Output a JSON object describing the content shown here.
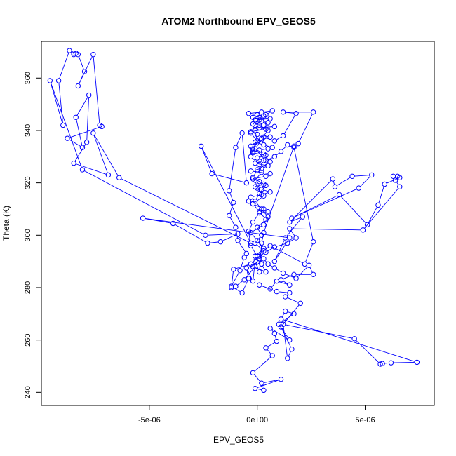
{
  "chart_data": {
    "type": "scatter",
    "title": "ATOM2 Northbound EPV_GEOS5",
    "xlabel": "EPV_GEOS5",
    "ylabel": "Theta (K)",
    "xlim": [
      -1e-05,
      8.2e-06
    ],
    "ylim": [
      235,
      374
    ],
    "x_ticks": [
      -5e-06,
      0,
      5e-06
    ],
    "x_tick_labels": [
      "-5e-06",
      "0e+00",
      "5e-06"
    ],
    "y_ticks": [
      240,
      260,
      280,
      300,
      320,
      340,
      360
    ],
    "y_tick_labels": [
      "240",
      "260",
      "280",
      "300",
      "320",
      "340",
      "360"
    ],
    "grid": false,
    "legend": "none",
    "color": "#0000ff",
    "series": [
      {
        "points_style": "points-connected",
        "x": [
          3e-07,
          -1e-07,
          1.1e-06,
          2e-07,
          -2e-07,
          7e-07,
          4e-07,
          9e-07,
          8e-07,
          6e-07,
          1.5e-06,
          1e-06,
          1.7e-06,
          1.3e-06,
          1.1e-06,
          7.4e-06,
          6.2e-06,
          5.8e-06,
          5.7e-06,
          4.5e-06,
          1.2e-06,
          1.4e-06,
          1.6e-06,
          1.1e-06,
          2e-06,
          1.3e-06,
          1.5e-06,
          9e-07,
          1e-07,
          6e-07,
          9e-07,
          1.5e-06,
          1.1e-06,
          1.7e-06,
          2.6e-06,
          2.4e-06,
          1.8e-06,
          1.2e-06,
          8e-07,
          5e-07,
          3e-07,
          -1e-07,
          -6e-07,
          -1e-06,
          -1.2e-06,
          -1.1e-06,
          -3e-07,
          1e-07,
          4e-07,
          8e-07,
          1.4e-06,
          1.8e-06,
          1.5e-06,
          4.9e-06,
          6.6e-06,
          6.4e-06,
          6.3e-06,
          6.5e-06,
          6.6e-06,
          5.9e-06,
          5.6e-06,
          5.1e-06,
          3.8e-06,
          1.6e-06,
          4.7e-06,
          5.3e-06,
          4.4e-06,
          3.6e-06,
          3.5e-06,
          1.5e-06,
          2.1e-06,
          1.3e-06,
          8e-07,
          1.5e-06,
          -5.3e-06,
          -3.9e-06,
          -2.3e-06,
          -1.7e-06,
          -9e-07,
          -2.4e-06,
          -8.1e-06,
          -9.6e-06,
          -9e-06,
          -9.2e-06,
          -8.7e-06,
          -8.5e-06,
          -8.5e-06,
          -8.4e-06,
          -8.3e-06,
          -8e-06,
          -8.3e-06,
          -7.6e-06,
          -7.3e-06,
          -7.2e-06,
          -8.8e-06,
          -8.1e-06,
          -8.4e-06,
          -7.8e-06,
          -7.9e-06,
          -8.5e-06,
          -6.9e-06,
          -7.6e-06,
          -6.4e-06,
          -3e-07,
          -2.6e-06,
          -2.1e-06,
          -5e-07,
          -7e-07,
          -1e-06,
          -1.3e-06,
          -1.1e-06,
          -1.3e-06,
          -1e-06,
          -9e-07,
          -5e-07,
          -6e-07,
          -8e-07,
          -1.2e-06,
          -7e-07,
          -4e-07,
          -5e-07,
          -2e-07,
          -1e-07,
          1e-07,
          2e-07,
          3e-07,
          1.7e-06,
          1.9e-06,
          2.6e-06,
          1.2e-06,
          1.8e-06,
          1.2e-06,
          8e-07,
          3e-07,
          -1e-07,
          4e-07,
          8e-07,
          1.1e-06,
          1.4e-06,
          1.7e-06,
          2.6e-06,
          2.2e-06,
          6e-07,
          0.0,
          -3e-07,
          -4e-07,
          -2e-07,
          1e-07,
          5e-07,
          3e-07,
          -2e-07,
          -4e-07,
          -3e-07,
          2e-07,
          6e-07,
          2e-07,
          -1e-07,
          3e-07,
          1e-07,
          -2e-07,
          4e-07,
          6e-07,
          -3e-07,
          2e-07,
          5e-07,
          -1e-07,
          3e-07,
          0.0,
          4e-07,
          -2e-07,
          1e-07,
          5e-07,
          7e-07,
          3e-07,
          -1e-07,
          2e-07,
          6e-07,
          0.0,
          -3e-07,
          4e-07,
          1e-07,
          8e-07,
          3e-07,
          -2e-07,
          5e-07,
          2e-07,
          -1e-07,
          6e-07,
          1e-07,
          3e-07,
          0.0,
          -4e-07,
          2e-07,
          7e-07,
          4e-07,
          -1e-07,
          1e-07,
          5e-07,
          2e-07,
          -3e-07,
          3e-07,
          6e-07,
          0.0,
          -2e-07,
          4e-07,
          1e-07,
          -1e-07,
          2e-07,
          5e-07,
          3e-07,
          -3e-07,
          0.0,
          3e-07,
          -1e-07,
          2e-07,
          4e-07,
          -2e-07,
          1e-07,
          3e-07,
          -1e-07,
          2e-07,
          0.0,
          4e-07,
          1e-07,
          -2e-07,
          3e-07,
          0.0,
          -1e-07,
          2e-07,
          1e-07,
          -3e-07,
          -2e-07,
          0.0,
          -3e-07,
          -1e-07,
          -2e-07,
          1e-07,
          -1e-07,
          0.0,
          -2e-07
        ],
        "y": [
          240.8,
          241.5,
          245.0,
          243.5,
          247.5,
          254.0,
          257.0,
          259.5,
          262.5,
          264.5,
          260.0,
          266.0,
          270.0,
          271.0,
          268.0,
          251.5,
          251.3,
          251.0,
          250.8,
          260.5,
          266.0,
          253.0,
          256.5,
          265.0,
          274.0,
          276.5,
          278.0,
          278.5,
          281.0,
          279.5,
          282.5,
          281.0,
          283.0,
          285.0,
          285.0,
          288.5,
          283.5,
          285.5,
          287.5,
          289.0,
          291.0,
          288.0,
          283.0,
          280.5,
          280.0,
          287.0,
          289.0,
          292.0,
          293.5,
          295.5,
          297.0,
          299.0,
          302.5,
          302.0,
          318.5,
          321.0,
          322.5,
          322.5,
          322.0,
          319.5,
          311.5,
          304.0,
          315.5,
          306.5,
          318.0,
          323.0,
          322.5,
          318.5,
          321.5,
          305.0,
          307.0,
          299.0,
          290.0,
          299.0,
          306.5,
          304.5,
          297.0,
          297.5,
          300.5,
          300.0,
          325.0,
          359.0,
          342.0,
          359.0,
          370.5,
          369.5,
          369.0,
          369.5,
          369.0,
          362.5,
          357.0,
          369.0,
          342.0,
          341.5,
          337.0,
          333.5,
          345.0,
          353.5,
          335.5,
          327.5,
          323.0,
          339.0,
          322.0,
          297.0,
          334.0,
          323.5,
          320.0,
          339.0,
          333.5,
          317.0,
          312.5,
          307.5,
          303.0,
          298.0,
          293.0,
          291.5,
          286.5,
          280.5,
          278.0,
          283.5,
          287.5,
          282.5,
          290.0,
          286.0,
          297.0,
          301.0,
          334.0,
          335.0,
          347.0,
          347.0,
          346.5,
          338.0,
          336.0,
          337.5,
          333.0,
          328.5,
          330.0,
          332.0,
          334.5,
          333.5,
          297.5,
          289.0,
          296.0,
          292.0,
          296.0,
          301.5,
          305.0,
          308.5,
          309.0,
          310.0,
          312.0,
          313.0,
          314.5,
          315.5,
          316.5,
          317.5,
          318.5,
          319.5,
          320.5,
          321.5,
          322.5,
          323.5,
          324.5,
          325.5,
          326.5,
          327.5,
          328.5,
          329.5,
          330.5,
          331.5,
          332.5,
          333.0,
          333.5,
          334.5,
          335.5,
          336.5,
          337.5,
          338.5,
          339.5,
          340.5,
          341.0,
          341.5,
          342.0,
          342.5,
          343.0,
          343.5,
          344.0,
          344.5,
          345.0,
          345.5,
          346.0,
          346.5,
          347.0,
          347.5,
          346.0,
          344.0,
          342.0,
          340.0,
          337.0,
          334.0,
          331.0,
          328.0,
          325.0,
          322.0,
          319.0,
          316.0,
          313.0,
          310.0,
          307.0,
          304.0,
          301.0,
          298.0,
          295.0,
          292.0,
          289.0,
          286.0,
          288.0,
          291.0,
          294.0,
          297.0,
          300.0,
          303.0,
          306.0,
          309.0,
          312.0,
          315.0,
          318.0,
          321.0,
          324.0,
          327.0,
          330.0,
          333.0,
          336.0,
          339.0,
          342.0,
          345.0,
          344.0,
          340.0,
          336.0,
          332.0
        ]
      }
    ]
  }
}
